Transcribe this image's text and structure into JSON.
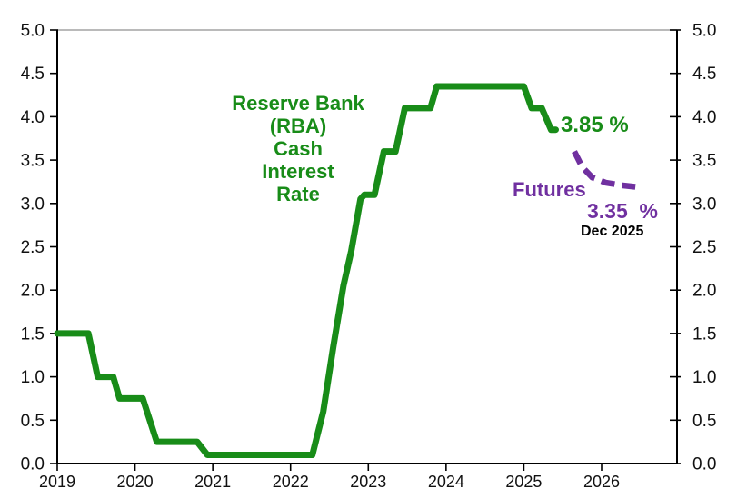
{
  "chart_data": {
    "type": "line",
    "title": "Reserve Bank (RBA) Cash Interest Rate",
    "xlabel": "",
    "ylabel": "",
    "xlim": [
      2019,
      2026.97
    ],
    "ylim": [
      0,
      5
    ],
    "grid": false,
    "legend_position": "none (inline text labels)",
    "x_ticks": [
      "2019",
      "2020",
      "2021",
      "2022",
      "2023",
      "2024",
      "2025",
      "2026"
    ],
    "y_ticks": [
      "0.0",
      "0.5",
      "1.0",
      "1.5",
      "2.0",
      "2.5",
      "3.0",
      "3.5",
      "4.0",
      "4.5",
      "5.0"
    ],
    "y_axis_sides": "both",
    "series": [
      {
        "id": "cash-rate-line",
        "name": "RBA Cash Interest Rate",
        "color": "#188c18",
        "style": "solid",
        "width": 7,
        "points": [
          [
            2019.0,
            1.5
          ],
          [
            2019.4,
            1.5
          ],
          [
            2019.52,
            1.0
          ],
          [
            2019.72,
            1.0
          ],
          [
            2019.8,
            0.75
          ],
          [
            2020.1,
            0.75
          ],
          [
            2020.28,
            0.25
          ],
          [
            2020.8,
            0.25
          ],
          [
            2020.93,
            0.1
          ],
          [
            2022.28,
            0.1
          ],
          [
            2022.42,
            0.6
          ],
          [
            2022.55,
            1.35
          ],
          [
            2022.68,
            2.05
          ],
          [
            2022.78,
            2.45
          ],
          [
            2022.9,
            3.05
          ],
          [
            2022.95,
            3.1
          ],
          [
            2023.08,
            3.1
          ],
          [
            2023.2,
            3.6
          ],
          [
            2023.35,
            3.6
          ],
          [
            2023.47,
            4.1
          ],
          [
            2023.8,
            4.1
          ],
          [
            2023.88,
            4.35
          ],
          [
            2025.0,
            4.35
          ],
          [
            2025.1,
            4.1
          ],
          [
            2025.23,
            4.1
          ],
          [
            2025.35,
            3.85
          ],
          [
            2025.41,
            3.85
          ]
        ]
      },
      {
        "id": "futures-line",
        "name": "Futures",
        "color": "#7030a0",
        "style": "dashed",
        "dash": "15 8",
        "width": 6.5,
        "points": [
          [
            2025.65,
            3.6
          ],
          [
            2025.75,
            3.42
          ],
          [
            2025.88,
            3.3
          ],
          [
            2026.05,
            3.24
          ],
          [
            2026.25,
            3.21
          ],
          [
            2026.46,
            3.19
          ]
        ]
      }
    ],
    "annotations": [
      {
        "id": "series-title",
        "text": "Reserve Bank\n(RBA)\nCash\nInterest\nRate",
        "color": "#188c18"
      },
      {
        "id": "current-rate",
        "text": "3.85 %",
        "color": "#188c18"
      },
      {
        "id": "futures",
        "text": "Futures",
        "color": "#7030a0"
      },
      {
        "id": "futures-rate",
        "text": "3.35  %",
        "color": "#7030a0"
      },
      {
        "id": "futures-date",
        "text": "Dec 2025",
        "color": "#000000"
      }
    ]
  },
  "colors": {
    "cash_rate_green": "#188c18",
    "futures_purple": "#7030a0",
    "axis_black": "#000000",
    "frame_top_gray": "#a3a3a3",
    "background": "#ffffff"
  }
}
